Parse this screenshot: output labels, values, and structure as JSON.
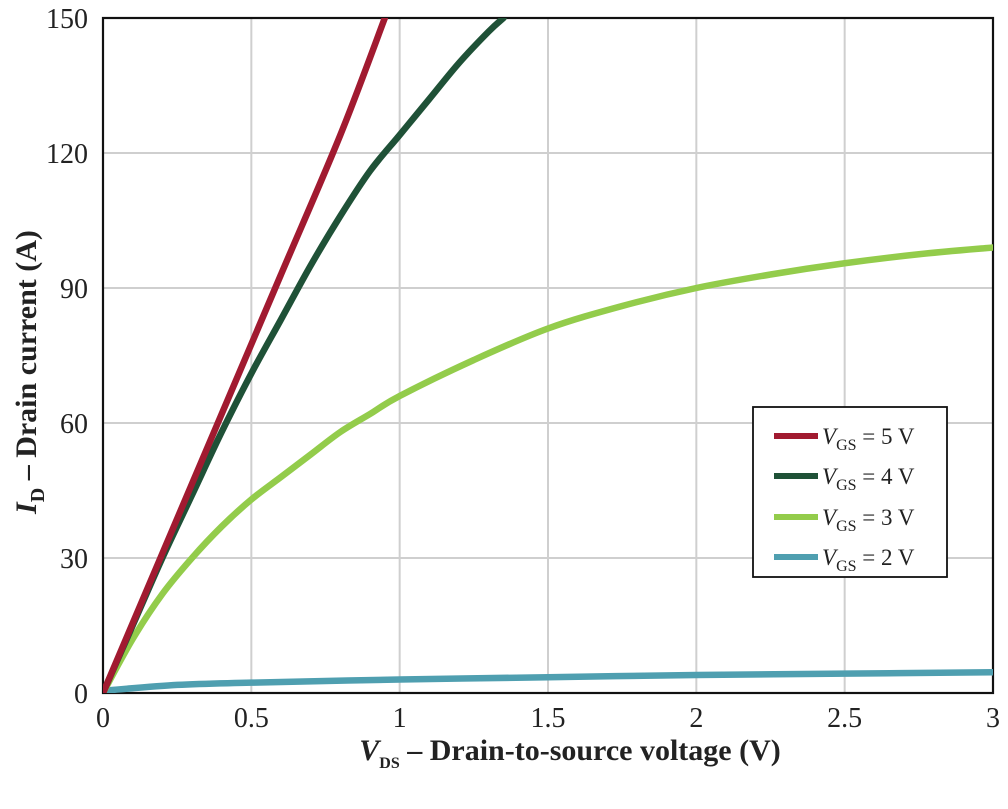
{
  "chart_data": {
    "type": "line",
    "xlabel": {
      "symbol": "V",
      "sub": "DS",
      "text": " – Drain-to-source voltage (V)"
    },
    "ylabel": {
      "symbol": "I",
      "sub": "D",
      "text": " – Drain current (A)"
    },
    "xlim": [
      0,
      3
    ],
    "ylim": [
      0,
      150
    ],
    "x_ticks": [
      {
        "value": 0,
        "label": "0"
      },
      {
        "value": 0.5,
        "label": "0.5"
      },
      {
        "value": 1,
        "label": "1"
      },
      {
        "value": 1.5,
        "label": "1.5"
      },
      {
        "value": 2,
        "label": "2"
      },
      {
        "value": 2.5,
        "label": "2.5"
      },
      {
        "value": 3,
        "label": "3"
      }
    ],
    "y_ticks": [
      {
        "value": 0,
        "label": "0"
      },
      {
        "value": 30,
        "label": "30"
      },
      {
        "value": 60,
        "label": "60"
      },
      {
        "value": 90,
        "label": "90"
      },
      {
        "value": 120,
        "label": "120"
      },
      {
        "value": 150,
        "label": "150"
      }
    ],
    "grid": true,
    "legend_position": "right",
    "series": [
      {
        "name": "VGS = 5 V",
        "legend": {
          "symbol": "V",
          "sub": "GS",
          "text": " = 5 V"
        },
        "color": "#a11a30",
        "points": [
          [
            0,
            0
          ],
          [
            0.2,
            31
          ],
          [
            0.4,
            62
          ],
          [
            0.6,
            93
          ],
          [
            0.8,
            124
          ],
          [
            0.95,
            150
          ]
        ]
      },
      {
        "name": "VGS = 4 V",
        "legend": {
          "symbol": "V",
          "sub": "GS",
          "text": " = 4 V"
        },
        "color": "#1f5137",
        "points": [
          [
            0,
            0
          ],
          [
            0.1,
            15
          ],
          [
            0.2,
            30
          ],
          [
            0.3,
            44
          ],
          [
            0.4,
            58
          ],
          [
            0.5,
            71
          ],
          [
            0.6,
            83
          ],
          [
            0.7,
            95
          ],
          [
            0.8,
            106
          ],
          [
            0.9,
            116
          ],
          [
            1.0,
            124
          ],
          [
            1.1,
            132
          ],
          [
            1.2,
            140
          ],
          [
            1.3,
            147
          ],
          [
            1.35,
            150
          ]
        ]
      },
      {
        "name": "VGS = 3 V",
        "legend": {
          "symbol": "V",
          "sub": "GS",
          "text": " = 3 V"
        },
        "color": "#93cc4b",
        "points": [
          [
            0,
            0
          ],
          [
            0.1,
            12
          ],
          [
            0.2,
            22
          ],
          [
            0.3,
            30
          ],
          [
            0.4,
            37
          ],
          [
            0.5,
            43
          ],
          [
            0.6,
            48
          ],
          [
            0.7,
            53
          ],
          [
            0.8,
            58
          ],
          [
            0.9,
            62
          ],
          [
            1.0,
            66
          ],
          [
            1.25,
            74
          ],
          [
            1.5,
            81
          ],
          [
            1.75,
            86
          ],
          [
            2.0,
            90
          ],
          [
            2.25,
            93
          ],
          [
            2.5,
            95.5
          ],
          [
            2.75,
            97.5
          ],
          [
            3.0,
            99
          ]
        ]
      },
      {
        "name": "VGS = 2 V",
        "legend": {
          "symbol": "V",
          "sub": "GS",
          "text": " = 2 V"
        },
        "color": "#4f9fb0",
        "points": [
          [
            0,
            0.5
          ],
          [
            0.25,
            1.8
          ],
          [
            0.5,
            2.3
          ],
          [
            1.0,
            3.0
          ],
          [
            1.5,
            3.5
          ],
          [
            2.0,
            4.0
          ],
          [
            2.5,
            4.3
          ],
          [
            3.0,
            4.6
          ]
        ]
      }
    ]
  }
}
